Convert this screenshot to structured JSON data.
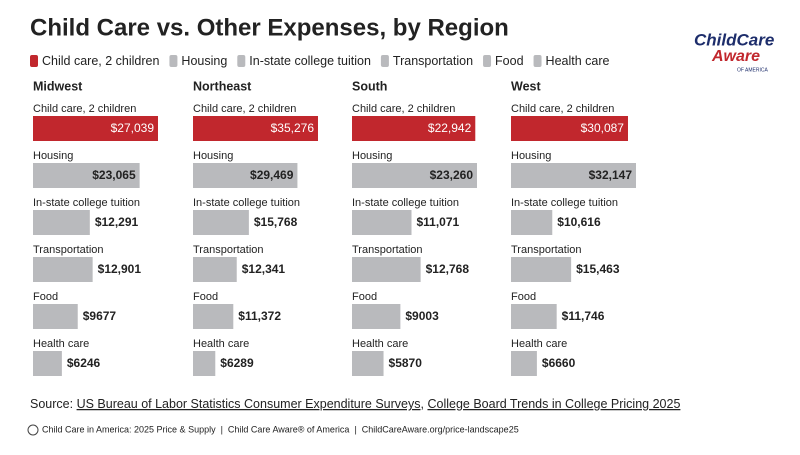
{
  "title": "Child Care vs. Other Expenses, by Region",
  "legend": [
    {
      "name": "Child care, 2 children",
      "color": "#c1272d"
    },
    {
      "name": "Housing",
      "color": "#b9babd"
    },
    {
      "name": "In-state college tuition",
      "color": "#b9babd"
    },
    {
      "name": "Transportation",
      "color": "#b9babd"
    },
    {
      "name": "Food",
      "color": "#b9babd"
    },
    {
      "name": "Health care",
      "color": "#b9babd"
    }
  ],
  "logo": {
    "line1": "ChildCare",
    "line2": "Aware",
    "line3": "OF AMERICA"
  },
  "chart_data": [
    {
      "type": "bar",
      "orientation": "horizontal",
      "title": "Midwest",
      "categories": [
        "Child care, 2 children",
        "Housing",
        "In-state college tuition",
        "Transportation",
        "Food",
        "Health care"
      ],
      "values": [
        27039,
        23065,
        12291,
        12901,
        9677,
        6246
      ],
      "value_labels": [
        "$27,039",
        "$23,065",
        "$12,291",
        "$12,901",
        "$9677",
        "$6246"
      ],
      "colors": [
        "#c1272d",
        "#b9babd",
        "#b9babd",
        "#b9babd",
        "#b9babd",
        "#b9babd"
      ]
    },
    {
      "type": "bar",
      "orientation": "horizontal",
      "title": "Northeast",
      "categories": [
        "Child care, 2 children",
        "Housing",
        "In-state college tuition",
        "Transportation",
        "Food",
        "Health care"
      ],
      "values": [
        35276,
        29469,
        15768,
        12341,
        11372,
        6289
      ],
      "value_labels": [
        "$35,276",
        "$29,469",
        "$15,768",
        "$12,341",
        "$11,372",
        "$6289"
      ],
      "colors": [
        "#c1272d",
        "#b9babd",
        "#b9babd",
        "#b9babd",
        "#b9babd",
        "#b9babd"
      ]
    },
    {
      "type": "bar",
      "orientation": "horizontal",
      "title": "South",
      "categories": [
        "Child care, 2 children",
        "Housing",
        "In-state college tuition",
        "Transportation",
        "Food",
        "Health care"
      ],
      "values": [
        22942,
        23260,
        11071,
        12768,
        9003,
        5870
      ],
      "value_labels": [
        "$22,942",
        "$23,260",
        "$11,071",
        "$12,768",
        "$9003",
        "$5870"
      ],
      "colors": [
        "#c1272d",
        "#b9babd",
        "#b9babd",
        "#b9babd",
        "#b9babd",
        "#b9babd"
      ]
    },
    {
      "type": "bar",
      "orientation": "horizontal",
      "title": "West",
      "categories": [
        "Child care, 2 children",
        "Housing",
        "In-state college tuition",
        "Transportation",
        "Food",
        "Health care"
      ],
      "values": [
        30087,
        32147,
        10616,
        15463,
        11746,
        6660
      ],
      "value_labels": [
        "$30,087",
        "$32,147",
        "$10,616",
        "$15,463",
        "$11,746",
        "$6660"
      ],
      "colors": [
        "#c1272d",
        "#b9babd",
        "#b9babd",
        "#b9babd",
        "#b9babd",
        "#b9babd"
      ]
    }
  ],
  "source": {
    "label": "Source:",
    "link1": "US Bureau of Labor Statistics Consumer Expenditure Surveys",
    "separator": ",",
    "link2": "College Board Trends in College Pricing 2025"
  },
  "footer": "Child Care in America: 2025 Price & Supply  |  Child Care Aware® of America  |  ChildCareAware.org/price-landscape25"
}
